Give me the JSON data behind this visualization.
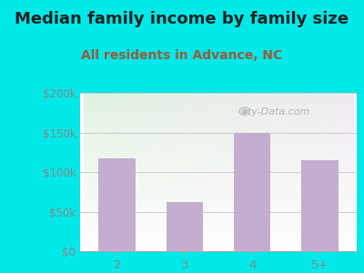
{
  "title": "Median family income by family size",
  "subtitle": "All residents in Advance, NC",
  "categories": [
    "2",
    "3",
    "4",
    "5+"
  ],
  "values": [
    117500,
    62500,
    150000,
    115000
  ],
  "bar_color": "#c4aed0",
  "title_fontsize": 13,
  "subtitle_fontsize": 10,
  "subtitle_color": "#9b5a3c",
  "title_color": "#222222",
  "background_outer": "#00e8e8",
  "ylim": [
    0,
    200000
  ],
  "yticks": [
    0,
    50000,
    100000,
    150000,
    200000
  ],
  "ytick_labels": [
    "$0",
    "$50k",
    "$100k",
    "$150k",
    "$200k"
  ],
  "tick_color": "#888888",
  "watermark": "City-Data.com",
  "watermark_color": "#aaaaaa",
  "grid_color": "#cccccc"
}
